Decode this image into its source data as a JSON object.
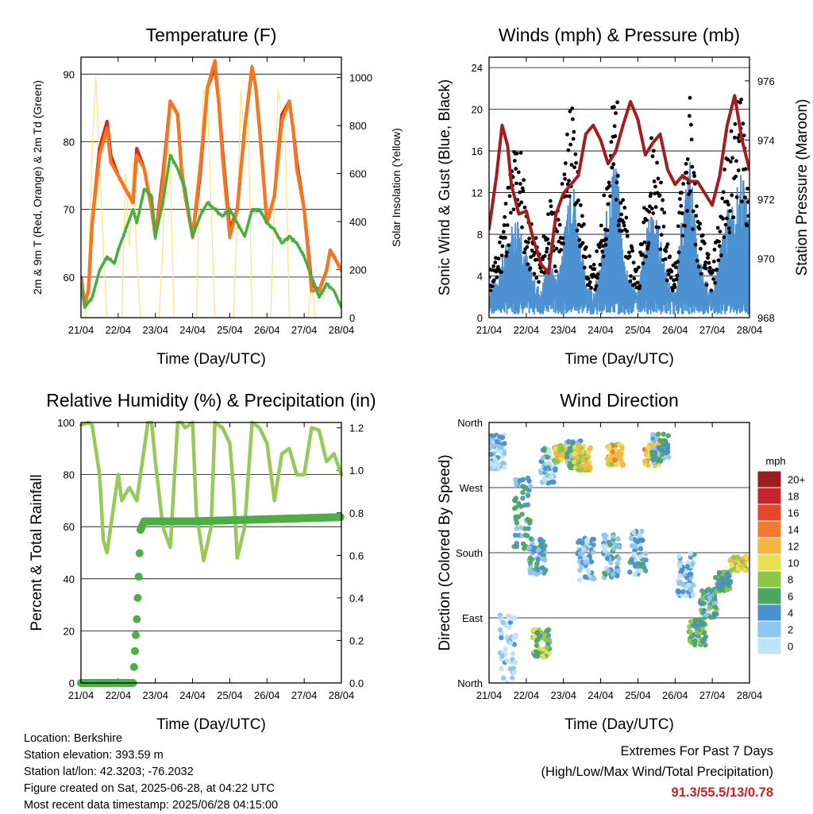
{
  "x_tick_labels": [
    "21/04",
    "22/04",
    "23/04",
    "24/04",
    "25/04",
    "26/04",
    "27/04",
    "28/04"
  ],
  "colors": {
    "temp2m": "#d42a20",
    "temp9m": "#f7771f",
    "dewpoint": "#4bac3f",
    "solar": "#f9e27a",
    "sonic_wind": "#4d92d2",
    "gust": "#000000",
    "pressure": "#a31d1d",
    "rh": "#98c958",
    "precip": "#4cae44",
    "extremes_values": "#c8202a"
  },
  "chart_data": [
    {
      "type": "line",
      "title": "Temperature (F)",
      "xlabel": "Time (Day/UTC)",
      "ylabel": "2m & 9m T (Red, Orange) & 2m Td (Green)",
      "y2label": "Solar Insolation (Yellow)",
      "x_range_days": [
        0,
        7
      ],
      "ylim": [
        54,
        92.5
      ],
      "y2lim": [
        0,
        1085
      ],
      "yticks": [
        60,
        70,
        80,
        90
      ],
      "y2ticks": [
        0,
        200,
        400,
        600,
        800,
        1000
      ],
      "grid": true,
      "series": [
        {
          "role": "temp2m",
          "x": [
            0,
            0.1,
            0.2,
            0.3,
            0.5,
            0.7,
            0.8,
            1.0,
            1.2,
            1.4,
            1.5,
            1.7,
            1.9,
            2.0,
            2.2,
            2.4,
            2.6,
            2.7,
            2.8,
            3.0,
            3.2,
            3.4,
            3.6,
            3.7,
            3.8,
            4.0,
            4.2,
            4.4,
            4.6,
            4.7,
            4.8,
            5.0,
            5.2,
            5.4,
            5.6,
            5.7,
            5.8,
            6.0,
            6.2,
            6.4,
            6.6,
            6.7,
            6.8,
            7.0
          ],
          "y": [
            60,
            56,
            58,
            68,
            79,
            83,
            78,
            75,
            73,
            71,
            79,
            76,
            70,
            66,
            75,
            86,
            84,
            76,
            72,
            66,
            75,
            88,
            91,
            86,
            79,
            67,
            70,
            82,
            91,
            88,
            82,
            68,
            72,
            84,
            86,
            82,
            77,
            70,
            59,
            58,
            61,
            64,
            63,
            61
          ]
        },
        {
          "role": "temp9m",
          "x": [
            0,
            0.1,
            0.2,
            0.3,
            0.5,
            0.7,
            0.8,
            1.0,
            1.2,
            1.4,
            1.5,
            1.7,
            1.9,
            2.0,
            2.2,
            2.4,
            2.6,
            2.7,
            2.8,
            3.0,
            3.2,
            3.4,
            3.6,
            3.7,
            3.8,
            4.0,
            4.2,
            4.4,
            4.6,
            4.7,
            4.8,
            5.0,
            5.2,
            5.4,
            5.6,
            5.7,
            5.8,
            6.0,
            6.2,
            6.4,
            6.6,
            6.7,
            6.8,
            7.0
          ],
          "y": [
            59.5,
            56,
            58,
            68,
            78,
            82,
            77,
            75,
            73,
            71,
            78,
            76,
            70,
            66,
            74,
            86,
            84,
            76,
            72,
            66,
            76,
            88,
            92,
            86,
            78,
            66,
            70,
            82,
            91,
            88,
            82,
            68,
            72,
            83,
            86,
            82,
            76,
            70,
            58,
            58,
            61,
            64,
            63,
            61
          ]
        },
        {
          "role": "dewpoint",
          "x": [
            0,
            0.1,
            0.3,
            0.5,
            0.7,
            0.9,
            1.0,
            1.2,
            1.4,
            1.5,
            1.7,
            1.9,
            2.0,
            2.2,
            2.4,
            2.6,
            2.8,
            3.0,
            3.2,
            3.4,
            3.6,
            3.8,
            4.0,
            4.2,
            4.4,
            4.6,
            4.8,
            5.0,
            5.2,
            5.4,
            5.6,
            5.8,
            6.0,
            6.2,
            6.4,
            6.6,
            6.8,
            7.0
          ],
          "y": [
            59,
            55.5,
            57,
            61,
            63,
            62,
            64,
            67,
            70,
            68,
            73,
            72,
            66,
            71,
            78,
            76,
            73,
            66,
            69,
            71,
            70,
            69,
            70,
            68,
            66,
            70,
            70,
            68,
            67,
            65,
            66,
            65,
            63,
            60,
            57,
            59,
            58,
            55.5
          ]
        },
        {
          "role": "solar",
          "x": [
            0,
            0.1,
            0.2,
            0.3,
            0.4,
            0.5,
            0.6,
            0.7,
            0.8,
            1.0,
            1.1,
            1.2,
            1.3,
            1.4,
            1.5,
            1.6,
            1.7,
            1.8,
            2.0,
            2.1,
            2.2,
            2.3,
            2.4,
            2.5,
            2.6,
            2.7,
            2.8,
            3.0,
            3.1,
            3.2,
            3.3,
            3.4,
            3.5,
            3.6,
            3.7,
            3.8,
            4.0,
            4.1,
            4.2,
            4.3,
            4.4,
            4.5,
            4.6,
            4.7,
            4.8,
            5.0,
            5.1,
            5.2,
            5.3,
            5.4,
            5.5,
            5.6,
            5.7,
            5.8,
            6.0,
            6.1,
            6.2,
            6.3,
            6.4,
            6.5,
            6.6,
            6.7,
            6.8,
            7.0
          ],
          "y": [
            0,
            0,
            200,
            700,
            1000,
            650,
            300,
            0,
            0,
            0,
            0,
            600,
            300,
            650,
            250,
            0,
            0,
            0,
            0,
            0,
            300,
            800,
            600,
            0,
            0,
            0,
            0,
            0,
            0,
            600,
            950,
            900,
            450,
            0,
            0,
            0,
            0,
            0,
            400,
            950,
            700,
            800,
            0,
            0,
            0,
            0,
            0,
            500,
            950,
            850,
            700,
            0,
            0,
            0,
            0,
            0,
            150,
            0,
            0,
            0,
            0,
            0,
            0,
            0
          ]
        }
      ]
    },
    {
      "type": "scatter",
      "title": "Winds (mph) & Pressure (mb)",
      "xlabel": "Time (Day/UTC)",
      "ylabel": "Sonic Wind & Gust (Blue, Black)",
      "y2label": "Station Pressure (Maroon)",
      "x_range_days": [
        0,
        7
      ],
      "ylim": [
        0,
        25
      ],
      "y2lim": [
        968,
        976.8
      ],
      "yticks": [
        0,
        4,
        8,
        12,
        16,
        20,
        24
      ],
      "y2ticks": [
        968,
        970,
        972,
        974,
        976
      ],
      "grid": true,
      "series": [
        {
          "role": "sonic_wind",
          "x": [
            0,
            0.2,
            0.4,
            0.6,
            0.8,
            1.0,
            1.2,
            1.4,
            1.6,
            1.8,
            2.0,
            2.2,
            2.4,
            2.6,
            2.8,
            3.0,
            3.2,
            3.4,
            3.6,
            3.8,
            4.0,
            4.2,
            4.4,
            4.6,
            4.8,
            5.0,
            5.2,
            5.4,
            5.6,
            5.8,
            6.0,
            6.2,
            6.4,
            6.6,
            6.8,
            7.0
          ],
          "y": [
            2,
            3,
            5,
            7,
            8,
            5,
            3,
            2,
            5,
            3,
            6,
            12,
            7,
            3,
            2,
            4,
            9,
            13,
            5,
            3,
            2,
            6,
            9,
            6,
            3,
            2,
            8,
            12,
            5,
            3,
            2,
            5,
            8,
            9,
            11,
            7
          ]
        },
        {
          "role": "gust",
          "x": [
            0,
            0.2,
            0.4,
            0.6,
            0.8,
            1.0,
            1.2,
            1.4,
            1.6,
            1.8,
            2.0,
            2.2,
            2.4,
            2.6,
            2.8,
            3.0,
            3.2,
            3.4,
            3.6,
            3.8,
            4.0,
            4.2,
            4.4,
            4.6,
            4.8,
            5.0,
            5.2,
            5.4,
            5.6,
            5.8,
            6.0,
            6.2,
            6.4,
            6.6,
            6.8,
            7.0
          ],
          "y": [
            4,
            5,
            9,
            13,
            16,
            9,
            7,
            5,
            10,
            8,
            12,
            19,
            13,
            6,
            4,
            7,
            14,
            20,
            10,
            6,
            4,
            10,
            16,
            12,
            6,
            4,
            13,
            18,
            9,
            6,
            4,
            9,
            14,
            16,
            20,
            12
          ]
        },
        {
          "role": "pressure",
          "x": [
            0,
            0.2,
            0.35,
            0.5,
            0.6,
            0.8,
            1.0,
            1.2,
            1.4,
            1.6,
            1.8,
            2.0,
            2.2,
            2.4,
            2.6,
            2.8,
            3.0,
            3.2,
            3.4,
            3.6,
            3.8,
            4.0,
            4.2,
            4.4,
            4.6,
            4.8,
            5.0,
            5.2,
            5.4,
            5.6,
            5.8,
            6.0,
            6.2,
            6.4,
            6.6,
            6.8,
            7.0
          ],
          "y": [
            971,
            972.8,
            974.5,
            973.8,
            972.5,
            971.5,
            971.6,
            970.6,
            969.8,
            969.5,
            971.5,
            972.2,
            972.5,
            972.8,
            974.2,
            974.5,
            974,
            973.2,
            973.6,
            974.5,
            975.3,
            974.7,
            973.5,
            973.9,
            974.2,
            973,
            972.5,
            972.8,
            972.6,
            972.6,
            972.2,
            971.8,
            972.8,
            974.5,
            975.5,
            974,
            973
          ]
        }
      ]
    },
    {
      "type": "line",
      "title": "Relative Humidity (%) & Precipitation (in)",
      "xlabel": "Time (Day/UTC)",
      "ylabel": "Percent & Total Rainfall",
      "x_range_days": [
        0,
        7
      ],
      "ylim": [
        0,
        100
      ],
      "y2lim": [
        0,
        1.225
      ],
      "yticks": [
        0,
        20,
        40,
        60,
        80,
        100
      ],
      "y2ticks": [
        0.0,
        0.2,
        0.4,
        0.6,
        0.8,
        1.0,
        1.2
      ],
      "grid": true,
      "series": [
        {
          "role": "rh",
          "x": [
            0,
            0.2,
            0.3,
            0.5,
            0.6,
            0.7,
            0.8,
            1.0,
            1.1,
            1.3,
            1.5,
            1.6,
            1.8,
            1.9,
            2.0,
            2.2,
            2.4,
            2.6,
            2.7,
            2.8,
            3.0,
            3.1,
            3.3,
            3.5,
            3.6,
            3.8,
            4.0,
            4.1,
            4.2,
            4.4,
            4.6,
            4.8,
            5.0,
            5.2,
            5.4,
            5.6,
            5.8,
            6.0,
            6.2,
            6.4,
            6.6,
            6.8,
            7.0
          ],
          "y": [
            99,
            100,
            99,
            80,
            55,
            50,
            60,
            80,
            70,
            75,
            70,
            80,
            100,
            100,
            85,
            60,
            52,
            100,
            100,
            98,
            100,
            65,
            47,
            60,
            100,
            98,
            92,
            75,
            48,
            60,
            100,
            98,
            92,
            70,
            88,
            90,
            80,
            80,
            98,
            97,
            85,
            88,
            80
          ]
        },
        {
          "role": "precip",
          "x": [
            0,
            0.5,
            1.0,
            1.4,
            1.5,
            1.55,
            1.6,
            1.7,
            1.8,
            2.0,
            3.0,
            4.0,
            5.0,
            6.0,
            7.0
          ],
          "y": [
            0,
            0,
            0,
            0,
            0.3,
            0.5,
            0.72,
            0.76,
            0.76,
            0.76,
            0.76,
            0.765,
            0.77,
            0.775,
            0.78
          ]
        }
      ]
    },
    {
      "type": "scatter",
      "title": "Wind Direction",
      "xlabel": "Time (Day/UTC)",
      "ylabel": "Direction (Colored By Speed)",
      "x_range_days": [
        0,
        7
      ],
      "ylim": [
        0,
        360
      ],
      "yticks": [
        "North",
        "East",
        "South",
        "West",
        "North"
      ],
      "grid": true,
      "colorbar_title": "mph",
      "colorbar_labels": [
        "0",
        "2",
        "4",
        "6",
        "8",
        "10",
        "12",
        "14",
        "16",
        "18",
        "20+"
      ],
      "colorbar_colors": [
        "#bfe3f7",
        "#8fc6ec",
        "#4a8fcf",
        "#4ea761",
        "#8cc748",
        "#e8e055",
        "#f5b646",
        "#f17a2c",
        "#e2472c",
        "#c5242a",
        "#9a1e1e"
      ],
      "clusters": [
        {
          "x": 0.2,
          "dir": 320,
          "spread": 25,
          "speed": 2
        },
        {
          "x": 0.5,
          "dir": 40,
          "spread": 60,
          "speed": 1
        },
        {
          "x": 0.9,
          "dir": 235,
          "spread": 50,
          "speed": 4
        },
        {
          "x": 1.3,
          "dir": 175,
          "spread": 25,
          "speed": 4
        },
        {
          "x": 1.4,
          "dir": 55,
          "spread": 20,
          "speed": 7
        },
        {
          "x": 1.6,
          "dir": 300,
          "spread": 25,
          "speed": 3
        },
        {
          "x": 2.0,
          "dir": 318,
          "spread": 12,
          "speed": 10
        },
        {
          "x": 2.3,
          "dir": 315,
          "spread": 20,
          "speed": 4
        },
        {
          "x": 2.5,
          "dir": 310,
          "spread": 18,
          "speed": 10
        },
        {
          "x": 2.6,
          "dir": 170,
          "spread": 30,
          "speed": 2
        },
        {
          "x": 3.4,
          "dir": 315,
          "spread": 15,
          "speed": 11
        },
        {
          "x": 3.3,
          "dir": 175,
          "spread": 30,
          "speed": 3
        },
        {
          "x": 4.0,
          "dir": 180,
          "spread": 30,
          "speed": 3
        },
        {
          "x": 4.4,
          "dir": 315,
          "spread": 15,
          "speed": 11
        },
        {
          "x": 4.6,
          "dir": 325,
          "spread": 20,
          "speed": 4
        },
        {
          "x": 5.3,
          "dir": 150,
          "spread": 30,
          "speed": 2
        },
        {
          "x": 5.6,
          "dir": 70,
          "spread": 18,
          "speed": 6
        },
        {
          "x": 5.9,
          "dir": 110,
          "spread": 20,
          "speed": 5
        },
        {
          "x": 6.3,
          "dir": 140,
          "spread": 14,
          "speed": 6
        },
        {
          "x": 6.7,
          "dir": 165,
          "spread": 10,
          "speed": 10
        }
      ]
    }
  ],
  "station": {
    "location": "Location: Berkshire",
    "elevation": "Station elevation: 393.59 m",
    "latlon": "Station lat/lon: 42.3203; -76.2032",
    "created": "Figure created on Sat, 2025-06-28, at 04:22 UTC",
    "recent": "Most recent data timestamp: 2025/06/28 04:15:00"
  },
  "extremes": {
    "line1": "Extremes For Past 7 Days",
    "line2": "(High/Low/Max Wind/Total Precipitation)",
    "values": "91.3/55.5/13/0.78"
  }
}
